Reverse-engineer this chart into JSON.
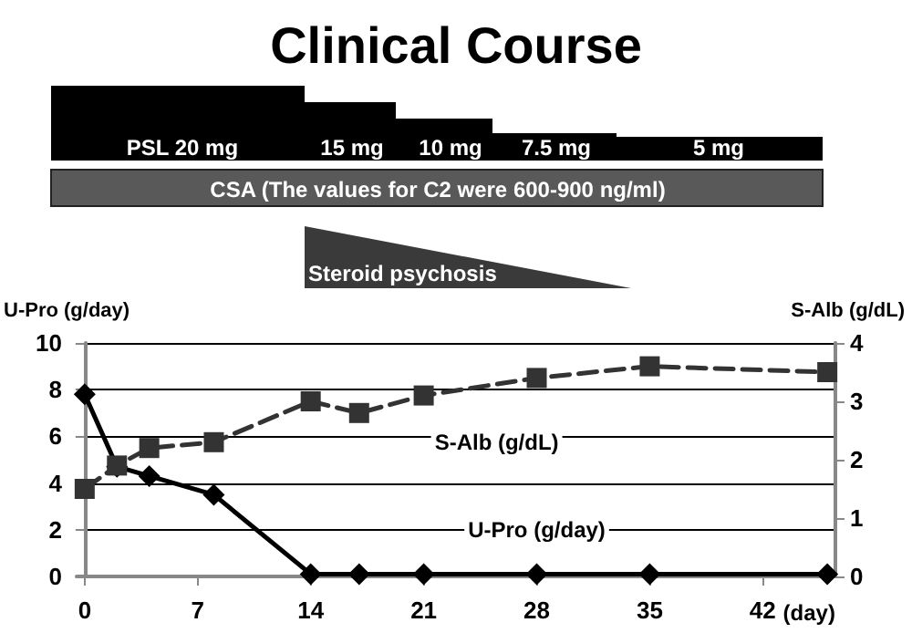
{
  "chart_data": {
    "type": "line",
    "title": "Clinical Course",
    "xlabel": "(day)",
    "ylabel": "U-Pro (g/day)",
    "y2label": "S-Alb (g/dL)",
    "x": [
      0,
      2,
      4,
      8,
      14,
      17,
      21,
      28,
      35,
      46
    ],
    "series": [
      {
        "name": "U-Pro (g/day)",
        "color": "#000000",
        "marker": "diamond",
        "line_style": "solid",
        "values": [
          7.8,
          4.7,
          4.3,
          3.5,
          0.1,
          0.1,
          0.1,
          0.1,
          0.1,
          0.1
        ]
      },
      {
        "name": "S-Alb (g/dL)",
        "color": "#333333",
        "marker": "square",
        "line_style": "dashed",
        "axis": "y2",
        "values": [
          1.5,
          1.9,
          2.2,
          2.3,
          3.0,
          2.8,
          3.1,
          3.4,
          3.6,
          3.5
        ]
      }
    ],
    "xlim": [
      -0.5,
      46.5
    ],
    "xticks": [
      0,
      7,
      14,
      21,
      28,
      35,
      42
    ],
    "ylim": [
      0,
      10
    ],
    "yticks": [
      0,
      2,
      4,
      6,
      8,
      10
    ],
    "y2lim": [
      0,
      4
    ],
    "y2ticks": [
      0,
      1,
      2,
      3,
      4
    ],
    "grid": "y",
    "annotations": [
      "PSL 20 mg",
      "15 mg",
      "10 mg",
      "7.5 mg",
      "5 mg",
      "CSA (The values for C2 were 600-900 ng/ml)",
      "Steroid psychosis"
    ]
  }
}
